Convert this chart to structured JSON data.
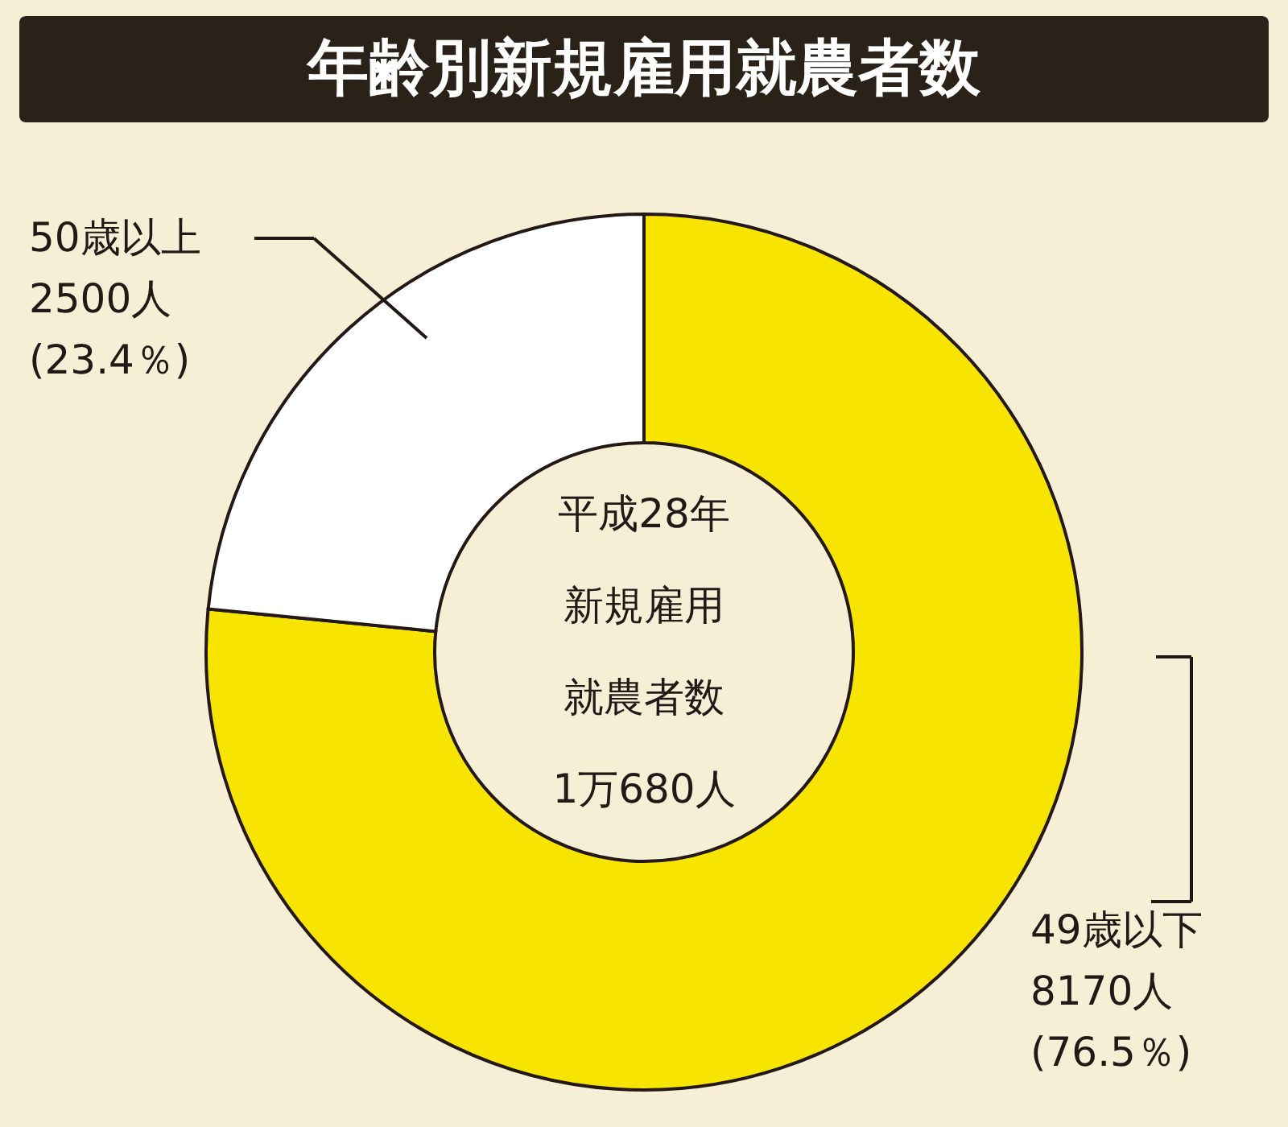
{
  "chart_data": {
    "type": "donut",
    "title": "年齢別新規雇用就農者数",
    "categories": [
      "49歳以下",
      "50歳以上"
    ],
    "values": [
      8170,
      2500
    ],
    "colors": [
      "#f7e400",
      "#ffffff"
    ],
    "value_labels": [
      "8170人\n(76.5％)",
      "2500人\n(23.4％)"
    ],
    "annotations": [
      "平成28年",
      "新規雇用",
      "就農者数",
      "1万680人"
    ]
  }
}
